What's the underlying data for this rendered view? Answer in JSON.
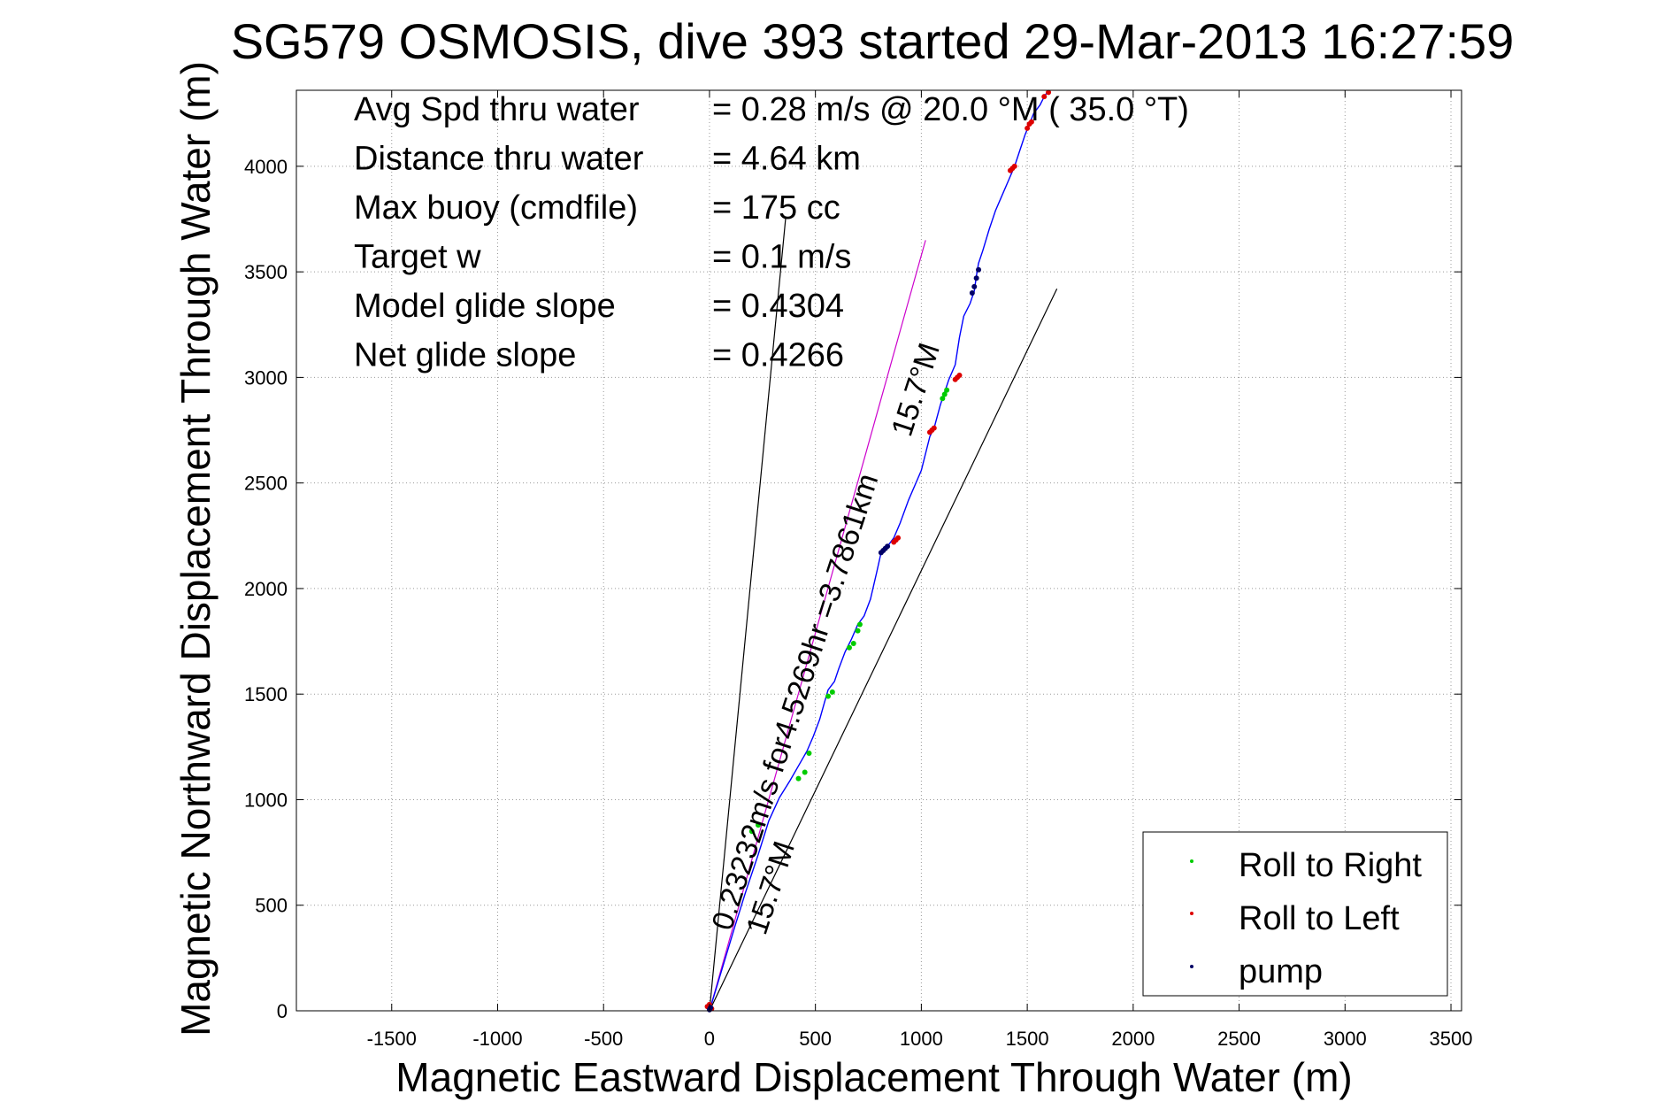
{
  "chart_data": {
    "type": "line",
    "title": "SG579 OSMOSIS, dive 393 started 29-Mar-2013 16:27:59",
    "xlabel": "Magnetic Eastward Displacement Through Water (m)",
    "ylabel": "Magnetic Northward Displacement Through Water (m)",
    "xlim": [
      -1950,
      3550
    ],
    "ylim": [
      0,
      4360
    ],
    "xticks": [
      -1500,
      -1000,
      -500,
      0,
      500,
      1000,
      1500,
      2000,
      2500,
      3000,
      3500
    ],
    "yticks": [
      0,
      500,
      1000,
      1500,
      2000,
      2500,
      3000,
      3500,
      4000
    ],
    "grid": true,
    "legend_position": "bottom-right",
    "stats": [
      {
        "label": "Avg Spd thru water",
        "value": "=  0.28 m/s @  20.0 °M ( 35.0 °T)"
      },
      {
        "label": "Distance thru water",
        "value": "=  4.64 km"
      },
      {
        "label": "Max buoy (cmdfile)",
        "value": "= 175 cc"
      },
      {
        "label": "Target w",
        "value": "= 0.1 m/s"
      },
      {
        "label": "Model glide slope",
        "value": "= 0.4304"
      },
      {
        "label": "Net glide slope",
        "value": "= 0.4266"
      }
    ],
    "annotations": [
      {
        "text": "0.23232m/s for4.5269hr =3.7861km"
      },
      {
        "text": "15.7°M"
      },
      {
        "text": "15.7°M"
      }
    ],
    "reference_lines": [
      {
        "x": [
          0,
          360
        ],
        "y": [
          0,
          3760
        ],
        "color": "#000000"
      },
      {
        "x": [
          0,
          1640
        ],
        "y": [
          0,
          3420
        ],
        "color": "#000000"
      },
      {
        "x": [
          0,
          1020
        ],
        "y": [
          0,
          3650
        ],
        "color": "#cc00cc"
      }
    ],
    "track": {
      "name": "track",
      "color": "#0000ff",
      "x": [
        0,
        60,
        120,
        170,
        230,
        280,
        330,
        380,
        420,
        460,
        490,
        520,
        540,
        560,
        590,
        610,
        640,
        670,
        700,
        730,
        760,
        790,
        810,
        840,
        870,
        900,
        940,
        970,
        1000,
        1020,
        1040,
        1060,
        1090,
        1110,
        1130,
        1160,
        1180,
        1200,
        1230,
        1250,
        1260,
        1270,
        1290,
        1320,
        1350,
        1380,
        1410,
        1440,
        1460,
        1490,
        1510,
        1530,
        1560,
        1580,
        1600
      ],
      "y": [
        0,
        200,
        400,
        560,
        740,
        900,
        1010,
        1090,
        1160,
        1230,
        1300,
        1380,
        1450,
        1520,
        1560,
        1620,
        1700,
        1760,
        1830,
        1870,
        1950,
        2080,
        2170,
        2200,
        2240,
        2310,
        2420,
        2490,
        2560,
        2640,
        2720,
        2760,
        2870,
        2930,
        2990,
        3060,
        3190,
        3290,
        3350,
        3410,
        3480,
        3540,
        3600,
        3700,
        3790,
        3860,
        3930,
        4000,
        4060,
        4150,
        4200,
        4250,
        4290,
        4330,
        4360
      ]
    },
    "series": [
      {
        "name": "Roll to Right",
        "color": "#00cc00",
        "marker": "dot",
        "x": [
          200,
          230,
          420,
          450,
          470,
          560,
          580,
          660,
          680,
          700,
          710,
          1100,
          1110,
          1120
        ],
        "y": [
          850,
          880,
          1100,
          1130,
          1220,
          1490,
          1510,
          1720,
          1740,
          1800,
          1830,
          2900,
          2920,
          2940
        ]
      },
      {
        "name": "Roll to Left",
        "color": "#dd0000",
        "marker": "dot",
        "x": [
          -10,
          0,
          10,
          870,
          880,
          890,
          1040,
          1050,
          1060,
          1160,
          1170,
          1180,
          1420,
          1430,
          1440,
          1500,
          1510,
          1520,
          1580,
          1600
        ],
        "y": [
          20,
          30,
          10,
          2220,
          2230,
          2240,
          2740,
          2750,
          2760,
          2990,
          3000,
          3010,
          3980,
          3990,
          4000,
          4180,
          4200,
          4210,
          4330,
          4350
        ]
      },
      {
        "name": "pump",
        "color": "#000066",
        "marker": "dot",
        "x": [
          0,
          5,
          810,
          820,
          830,
          840,
          1240,
          1250,
          1260,
          1270
        ],
        "y": [
          5,
          15,
          2170,
          2180,
          2190,
          2200,
          3400,
          3430,
          3470,
          3510
        ]
      }
    ]
  }
}
